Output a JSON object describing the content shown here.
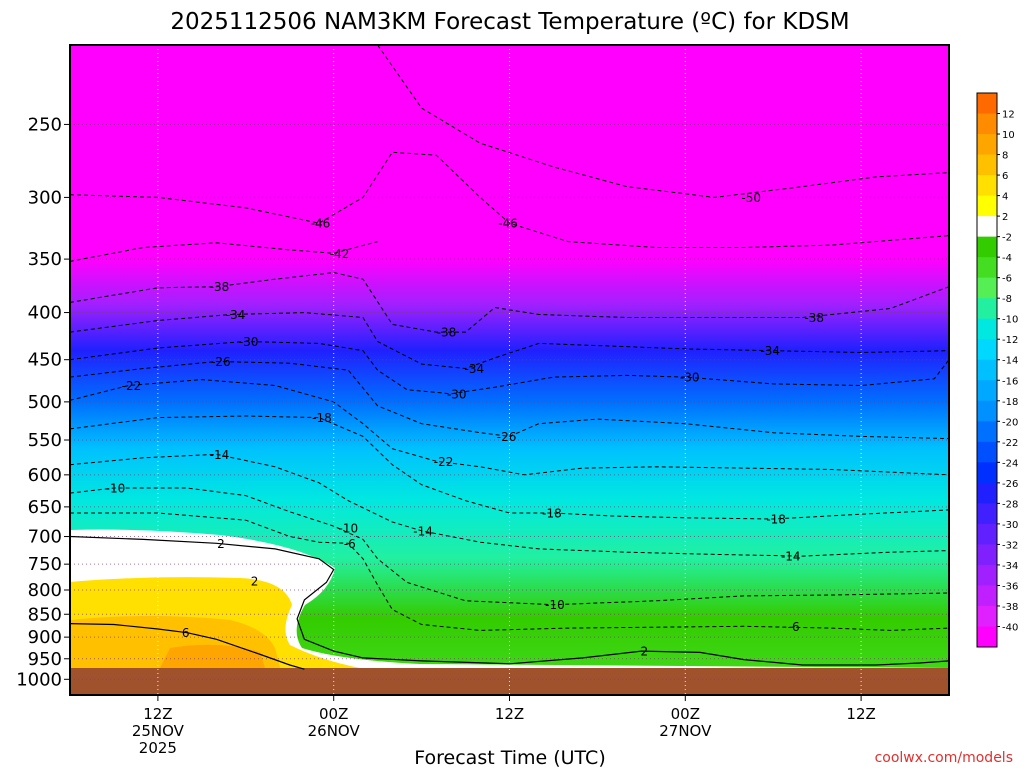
{
  "chart_data": {
    "type": "heatmap",
    "title": "2025112506 NAM3KM Forecast Temperature (ºC) for KDSM",
    "xlabel": "Forecast Time (UTC)",
    "ylabel": "",
    "credit": "coolwx.com/models",
    "y_axis": {
      "scale": "log",
      "range": [
        1040,
        205
      ],
      "ticks": [
        250,
        300,
        350,
        400,
        450,
        500,
        550,
        600,
        650,
        700,
        750,
        800,
        850,
        900,
        950,
        1000
      ]
    },
    "x_axis": {
      "range_hours": [
        0,
        60
      ],
      "ticks": [
        {
          "hour": 6,
          "lines": [
            "12Z",
            "25NOV",
            "2025"
          ]
        },
        {
          "hour": 18,
          "lines": [
            "00Z",
            "26NOV"
          ]
        },
        {
          "hour": 30,
          "lines": [
            "12Z"
          ]
        },
        {
          "hour": 42,
          "lines": [
            "00Z",
            "27NOV"
          ]
        },
        {
          "hour": 54,
          "lines": [
            "12Z"
          ]
        }
      ]
    },
    "grid": true,
    "surface_pressure_hpa": 975,
    "colorbar": {
      "labels": [
        "12",
        "10",
        "8",
        "6",
        "4",
        "2",
        "-2",
        "-4",
        "-6",
        "-8",
        "-10",
        "-12",
        "-14",
        "-16",
        "-18",
        "-20",
        "-22",
        "-24",
        "-26",
        "-28",
        "-30",
        "-32",
        "-34",
        "-36",
        "-38",
        "-40"
      ],
      "colors": [
        "#ff6a00",
        "#ff8c00",
        "#ffa500",
        "#ffc000",
        "#ffe000",
        "#ffff00",
        "#ffffff",
        "#33cc00",
        "#44dd22",
        "#55ee55",
        "#22f0a0",
        "#00e8e0",
        "#00d8ff",
        "#00c0ff",
        "#00a8ff",
        "#0090ff",
        "#0070ff",
        "#0050ff",
        "#0030ff",
        "#2020ff",
        "#4020ff",
        "#6020ff",
        "#8020ff",
        "#a020ff",
        "#c020ff",
        "#e020ff",
        "#ff00ff"
      ]
    },
    "series": [
      {
        "value": -50,
        "labels": [
          {
            "x_hour": 46.5,
            "p": 300
          }
        ],
        "points": [
          [
            21,
            205
          ],
          [
            24,
            240
          ],
          [
            28,
            262
          ],
          [
            33,
            278
          ],
          [
            38,
            292
          ],
          [
            44,
            300
          ],
          [
            50,
            292
          ],
          [
            55,
            285
          ],
          [
            60,
            282
          ]
        ]
      },
      {
        "value": -46,
        "labels": [
          {
            "x_hour": 17.1,
            "p": 320
          },
          {
            "x_hour": 29.9,
            "p": 320
          }
        ],
        "points": [
          [
            0,
            298
          ],
          [
            6,
            300
          ],
          [
            12,
            308
          ],
          [
            17,
            320
          ],
          [
            20,
            300
          ],
          [
            22,
            268
          ],
          [
            25,
            270
          ],
          [
            28,
            300
          ],
          [
            30,
            320
          ],
          [
            34,
            335
          ],
          [
            40,
            340
          ],
          [
            46,
            340
          ],
          [
            52,
            338
          ],
          [
            60,
            330
          ]
        ]
      },
      {
        "value": -42,
        "labels": [
          {
            "x_hour": 18.4,
            "p": 345
          }
        ],
        "points": [
          [
            0,
            352
          ],
          [
            5,
            340
          ],
          [
            10,
            336
          ],
          [
            15,
            342
          ],
          [
            18,
            345
          ],
          [
            21,
            335
          ]
        ]
      },
      {
        "value": -38,
        "labels": [
          {
            "x_hour": 10.2,
            "p": 375
          },
          {
            "x_hour": 25.7,
            "p": 420
          },
          {
            "x_hour": 50.8,
            "p": 405
          }
        ],
        "points": [
          [
            0,
            390
          ],
          [
            6,
            376
          ],
          [
            10,
            375
          ],
          [
            14,
            368
          ],
          [
            18,
            362
          ],
          [
            20,
            368
          ],
          [
            22,
            412
          ],
          [
            25,
            420
          ],
          [
            27,
            420
          ],
          [
            29,
            395
          ],
          [
            32,
            402
          ],
          [
            38,
            405
          ],
          [
            44,
            405
          ],
          [
            50,
            405
          ],
          [
            56,
            396
          ],
          [
            60,
            375
          ]
        ]
      },
      {
        "value": -34,
        "labels": [
          {
            "x_hour": 11.3,
            "p": 402
          },
          {
            "x_hour": 27.6,
            "p": 460
          },
          {
            "x_hour": 47.8,
            "p": 440
          }
        ],
        "points": [
          [
            0,
            420
          ],
          [
            6,
            408
          ],
          [
            11,
            402
          ],
          [
            16,
            400
          ],
          [
            20,
            405
          ],
          [
            21,
            430
          ],
          [
            24,
            455
          ],
          [
            27,
            460
          ],
          [
            29,
            448
          ],
          [
            32,
            432
          ],
          [
            37,
            435
          ],
          [
            42,
            438
          ],
          [
            48,
            440
          ],
          [
            54,
            442
          ],
          [
            60,
            440
          ]
        ]
      },
      {
        "value": -30,
        "labels": [
          {
            "x_hour": 12.2,
            "p": 430
          },
          {
            "x_hour": 26.4,
            "p": 490
          },
          {
            "x_hour": 42.3,
            "p": 470
          }
        ],
        "points": [
          [
            0,
            450
          ],
          [
            6,
            437
          ],
          [
            12,
            430
          ],
          [
            17,
            432
          ],
          [
            20,
            440
          ],
          [
            21,
            462
          ],
          [
            23,
            485
          ],
          [
            26,
            490
          ],
          [
            29,
            482
          ],
          [
            33,
            470
          ],
          [
            38,
            468
          ],
          [
            42,
            470
          ],
          [
            48,
            478
          ],
          [
            54,
            480
          ],
          [
            59,
            472
          ],
          [
            60,
            450
          ]
        ]
      },
      {
        "value": -26,
        "labels": [
          {
            "x_hour": 10.3,
            "p": 452
          },
          {
            "x_hour": 29.8,
            "p": 545
          }
        ],
        "points": [
          [
            0,
            470
          ],
          [
            5,
            460
          ],
          [
            10,
            452
          ],
          [
            15,
            454
          ],
          [
            19,
            462
          ],
          [
            21,
            505
          ],
          [
            24,
            528
          ],
          [
            28,
            540
          ],
          [
            30,
            545
          ],
          [
            32,
            528
          ],
          [
            36,
            522
          ],
          [
            42,
            528
          ],
          [
            48,
            540
          ],
          [
            54,
            545
          ],
          [
            60,
            548
          ]
        ]
      },
      {
        "value": -22,
        "labels": [
          {
            "x_hour": 4.2,
            "p": 480
          },
          {
            "x_hour": 25.5,
            "p": 580
          }
        ],
        "points": [
          [
            0,
            498
          ],
          [
            4,
            480
          ],
          [
            9,
            473
          ],
          [
            14,
            480
          ],
          [
            18,
            500
          ],
          [
            20,
            528
          ],
          [
            22,
            562
          ],
          [
            25,
            580
          ],
          [
            28,
            588
          ],
          [
            31,
            600
          ],
          [
            35,
            590
          ],
          [
            40,
            588
          ],
          [
            46,
            590
          ],
          [
            52,
            592
          ],
          [
            60,
            600
          ]
        ]
      },
      {
        "value": -18,
        "labels": [
          {
            "x_hour": 17.2,
            "p": 520
          },
          {
            "x_hour": 32.9,
            "p": 660
          },
          {
            "x_hour": 48.2,
            "p": 670
          }
        ],
        "points": [
          [
            0,
            535
          ],
          [
            6,
            520
          ],
          [
            12,
            518
          ],
          [
            17,
            520
          ],
          [
            20,
            545
          ],
          [
            22,
            585
          ],
          [
            24,
            615
          ],
          [
            27,
            640
          ],
          [
            30,
            660
          ],
          [
            33,
            660
          ],
          [
            37,
            665
          ],
          [
            42,
            668
          ],
          [
            48,
            670
          ],
          [
            54,
            662
          ],
          [
            60,
            655
          ]
        ]
      },
      {
        "value": -14,
        "labels": [
          {
            "x_hour": 10.2,
            "p": 570
          },
          {
            "x_hour": 24.1,
            "p": 690
          },
          {
            "x_hour": 49.2,
            "p": 735
          }
        ],
        "points": [
          [
            0,
            585
          ],
          [
            5,
            575
          ],
          [
            10,
            570
          ],
          [
            14,
            588
          ],
          [
            17,
            612
          ],
          [
            19,
            640
          ],
          [
            22,
            675
          ],
          [
            24,
            690
          ],
          [
            28,
            710
          ],
          [
            32,
            722
          ],
          [
            38,
            728
          ],
          [
            44,
            732
          ],
          [
            50,
            735
          ],
          [
            56,
            728
          ],
          [
            60,
            725
          ]
        ]
      },
      {
        "value": -10,
        "labels": [
          {
            "x_hour": 3.1,
            "p": 620
          },
          {
            "x_hour": 19.0,
            "p": 685
          },
          {
            "x_hour": 33.1,
            "p": 830
          }
        ],
        "points": [
          [
            0,
            628
          ],
          [
            3,
            620
          ],
          [
            8,
            620
          ],
          [
            12,
            632
          ],
          [
            15,
            658
          ],
          [
            18,
            682
          ],
          [
            20,
            705
          ],
          [
            21,
            740
          ],
          [
            23,
            785
          ],
          [
            27,
            822
          ],
          [
            33,
            830
          ],
          [
            40,
            822
          ],
          [
            46,
            812
          ],
          [
            52,
            810
          ],
          [
            60,
            806
          ]
        ]
      },
      {
        "value": -6,
        "labels": [
          {
            "x_hour": 19.1,
            "p": 712
          },
          {
            "x_hour": 49.4,
            "p": 876
          }
        ],
        "points": [
          [
            0,
            660
          ],
          [
            6,
            660
          ],
          [
            12,
            672
          ],
          [
            15,
            700
          ],
          [
            17,
            710
          ],
          [
            19,
            712
          ],
          [
            20,
            740
          ],
          [
            21,
            790
          ],
          [
            22,
            840
          ],
          [
            24,
            872
          ],
          [
            28,
            885
          ],
          [
            34,
            880
          ],
          [
            40,
            878
          ],
          [
            46,
            876
          ],
          [
            52,
            880
          ],
          [
            56,
            885
          ],
          [
            60,
            880
          ]
        ]
      },
      {
        "value": 2,
        "labels": [
          {
            "x_hour": 10.3,
            "p": 712
          },
          {
            "x_hour": 12.6,
            "p": 782
          },
          {
            "x_hour": 39.2,
            "p": 932
          }
        ],
        "points": [
          [
            0,
            700
          ],
          [
            5,
            705
          ],
          [
            10,
            712
          ],
          [
            14,
            722
          ],
          [
            17,
            740
          ],
          [
            18,
            760
          ],
          [
            17.5,
            785
          ],
          [
            16,
            820
          ],
          [
            15.5,
            860
          ],
          [
            16,
            905
          ],
          [
            18,
            932
          ],
          [
            20,
            948
          ],
          [
            24,
            955
          ],
          [
            30,
            962
          ],
          [
            35,
            948
          ],
          [
            39,
            932
          ],
          [
            43,
            935
          ],
          [
            46,
            952
          ],
          [
            50,
            965
          ],
          [
            55,
            965
          ],
          [
            58,
            960
          ],
          [
            60,
            955
          ]
        ]
      },
      {
        "value": 6,
        "labels": [
          {
            "x_hour": 7.9,
            "p": 890
          }
        ],
        "points": [
          [
            0,
            870
          ],
          [
            3,
            872
          ],
          [
            6,
            882
          ],
          [
            8,
            890
          ],
          [
            10,
            905
          ],
          [
            13,
            940
          ],
          [
            15,
            965
          ],
          [
            16,
            975
          ]
        ]
      }
    ]
  }
}
